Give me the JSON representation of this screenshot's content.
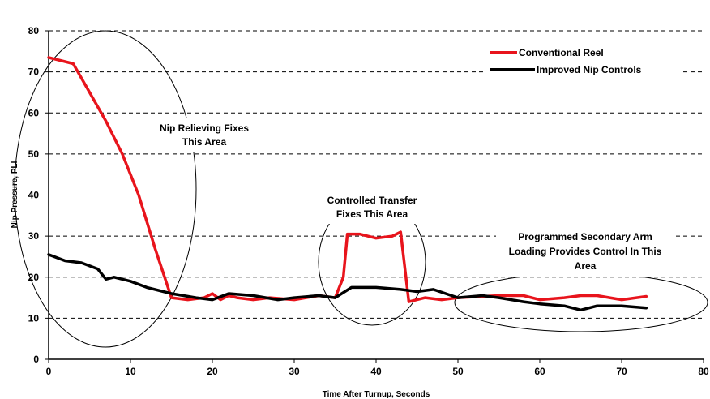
{
  "chart_data": {
    "type": "line",
    "title": "",
    "xlabel": "Time After Turnup, Seconds",
    "ylabel": "Nip Pressure, PLI",
    "xlim": [
      0,
      80
    ],
    "ylim": [
      0,
      80
    ],
    "x_ticks": [
      "0",
      "10",
      "20",
      "30",
      "40",
      "50",
      "60",
      "70",
      "80"
    ],
    "y_ticks": [
      "0",
      "10",
      "20",
      "30",
      "40",
      "50",
      "60",
      "70",
      "80"
    ],
    "grid": "horizontal dashed",
    "legend_position": "top-right",
    "series": [
      {
        "name": "Conventional Reel",
        "color": "#e8141c",
        "x": [
          0,
          3,
          5,
          7,
          9,
          11,
          13,
          15,
          17,
          19,
          20,
          21,
          22,
          23,
          25,
          27,
          30,
          33,
          35,
          36,
          36.5,
          38,
          40,
          42,
          43,
          44,
          45,
          46,
          48,
          50,
          55,
          58,
          60,
          63,
          65,
          67,
          70,
          73
        ],
        "y": [
          73.5,
          72,
          65,
          58,
          50,
          40,
          27,
          15,
          14.5,
          15,
          16,
          14.5,
          15.5,
          15,
          14.5,
          15,
          14.5,
          15.5,
          15,
          20,
          30.5,
          30.5,
          29.5,
          30,
          31,
          14,
          14.5,
          15,
          14.5,
          15,
          15.5,
          15.5,
          14.5,
          15,
          15.5,
          15.5,
          14.5,
          15.3
        ]
      },
      {
        "name": "Improved Nip Controls",
        "color": "#000000",
        "x": [
          0,
          2,
          4,
          6,
          7,
          8,
          10,
          12,
          15,
          18,
          20,
          22,
          25,
          28,
          30,
          33,
          35,
          37,
          40,
          43,
          45,
          47,
          50,
          53,
          55,
          58,
          60,
          63,
          65,
          67,
          70,
          73
        ],
        "y": [
          25.5,
          24,
          23.5,
          22,
          19.5,
          20,
          19,
          17.5,
          16,
          15,
          14.5,
          16,
          15.5,
          14.5,
          15,
          15.5,
          15,
          17.5,
          17.5,
          17,
          16.5,
          17,
          15,
          15.5,
          15,
          14,
          13.5,
          13,
          12,
          13,
          13,
          12.5
        ]
      }
    ],
    "annotations": [
      {
        "lines": [
          "Nip Relieving Fixes",
          "This Area"
        ]
      },
      {
        "lines": [
          "Controlled Transfer",
          "Fixes This Area"
        ]
      },
      {
        "lines": [
          "Programmed Secondary Arm",
          "Loading Provides Control In This",
          "Area"
        ]
      }
    ]
  }
}
